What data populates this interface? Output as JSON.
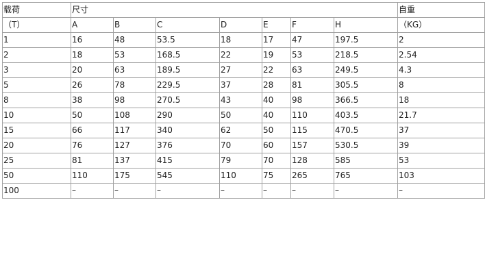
{
  "table": {
    "header_row1": {
      "load": "载荷",
      "dimensions": "尺寸",
      "weight": "自重"
    },
    "header_row2": [
      "（T）",
      "A",
      "B",
      "C",
      "D",
      "E",
      "F",
      "H",
      "（KG）"
    ],
    "rows": [
      [
        "1",
        "16",
        "48",
        "53.5",
        "18",
        "17",
        "47",
        "197.5",
        "2"
      ],
      [
        "2",
        "18",
        "53",
        "168.5",
        "22",
        "19",
        "53",
        "218.5",
        "2.54"
      ],
      [
        "3",
        "20",
        "63",
        "189.5",
        "27",
        "22",
        "63",
        "249.5",
        "4.3"
      ],
      [
        "5",
        "26",
        "78",
        "229.5",
        "37",
        "28",
        "81",
        "305.5",
        "8"
      ],
      [
        "8",
        "38",
        "98",
        "270.5",
        "43",
        "40",
        "98",
        "366.5",
        "18"
      ],
      [
        "10",
        "50",
        "108",
        "290",
        "50",
        "40",
        "110",
        "403.5",
        "21.7"
      ],
      [
        "15",
        "66",
        "117",
        "340",
        "62",
        "50",
        "115",
        "470.5",
        "37"
      ],
      [
        "20",
        "76",
        "127",
        "376",
        "70",
        "60",
        "157",
        "530.5",
        "39"
      ],
      [
        "25",
        "81",
        "137",
        "415",
        "79",
        "70",
        "128",
        "585",
        "53"
      ],
      [
        "50",
        "110",
        "175",
        "545",
        "110",
        "75",
        "265",
        "765",
        "103"
      ],
      [
        "100",
        "–",
        "–",
        "–",
        "–",
        "–",
        "–",
        "–",
        "–"
      ]
    ]
  }
}
